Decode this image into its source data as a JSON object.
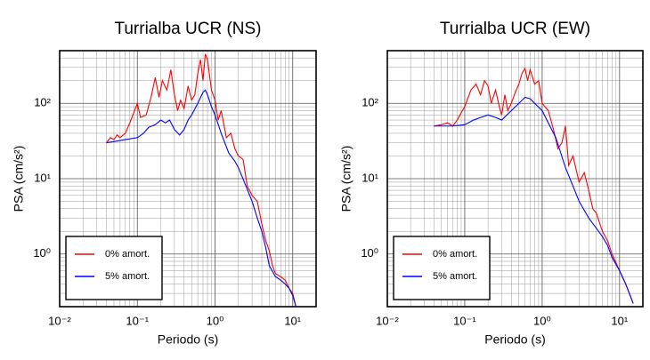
{
  "chart_data": [
    {
      "type": "line",
      "title": "Turrialba UCR (NS)",
      "x_label": "Periodo (s)",
      "y_label": "PSA (cm/s²)",
      "log_x": true,
      "log_y": true,
      "grid": true,
      "legend": "lower left",
      "xlim": [
        0.01,
        20
      ],
      "ylim": [
        0.2,
        500
      ],
      "xticks": [
        {
          "value": 0.01,
          "label": "10⁻²"
        },
        {
          "value": 0.1,
          "label": "10⁻¹"
        },
        {
          "value": 1,
          "label": "10⁰"
        },
        {
          "value": 10,
          "label": "10¹"
        }
      ],
      "yticks": [
        {
          "value": 1,
          "label": "10⁰"
        },
        {
          "value": 10,
          "label": "10¹"
        },
        {
          "value": 100,
          "label": "10²"
        }
      ],
      "xminorticks": [
        0.02,
        0.03,
        0.04,
        0.05,
        0.06,
        0.07,
        0.08,
        0.09,
        0.2,
        0.3,
        0.4,
        0.5,
        0.6,
        0.7,
        0.8,
        0.9,
        2,
        3,
        4,
        5,
        6,
        7,
        8,
        9,
        20
      ],
      "yminorticks": [
        0.2,
        0.3,
        0.4,
        0.5,
        0.6,
        0.7,
        0.8,
        0.9,
        2,
        3,
        4,
        5,
        6,
        7,
        8,
        9,
        20,
        30,
        40,
        50,
        60,
        70,
        80,
        90,
        200,
        300,
        400,
        500
      ],
      "series": [
        {
          "name": "0% amort.",
          "color": "#ff0000",
          "x": [
            0.04,
            0.045,
            0.05,
            0.055,
            0.06,
            0.07,
            0.08,
            0.09,
            0.1,
            0.11,
            0.13,
            0.15,
            0.17,
            0.19,
            0.21,
            0.24,
            0.27,
            0.3,
            0.33,
            0.36,
            0.4,
            0.45,
            0.5,
            0.55,
            0.6,
            0.65,
            0.7,
            0.75,
            0.8,
            0.9,
            1.0,
            1.1,
            1.2,
            1.4,
            1.6,
            1.8,
            2.0,
            2.3,
            2.6,
            3.0,
            3.5,
            4.0,
            4.5,
            5,
            5.5,
            6,
            7,
            8,
            9,
            10,
            11
          ],
          "values": [
            30,
            35,
            33,
            38,
            35,
            40,
            55,
            75,
            100,
            65,
            70,
            120,
            220,
            120,
            200,
            150,
            280,
            130,
            80,
            110,
            85,
            170,
            110,
            130,
            250,
            380,
            200,
            450,
            380,
            150,
            110,
            60,
            80,
            35,
            40,
            25,
            20,
            18,
            8,
            6,
            5,
            2.5,
            1.5,
            1.1,
            0.7,
            0.55,
            0.5,
            0.45,
            0.35,
            0.3,
            0.2
          ]
        },
        {
          "name": "5% amort.",
          "color": "#0000ff",
          "x": [
            0.04,
            0.05,
            0.07,
            0.1,
            0.12,
            0.14,
            0.17,
            0.2,
            0.23,
            0.26,
            0.3,
            0.35,
            0.4,
            0.45,
            0.5,
            0.6,
            0.7,
            0.75,
            0.8,
            0.9,
            1.0,
            1.2,
            1.5,
            1.8,
            2.0,
            2.5,
            3,
            3.5,
            4,
            4.5,
            5,
            6,
            7,
            8,
            9,
            10,
            11
          ],
          "values": [
            30,
            31,
            33,
            35,
            40,
            48,
            52,
            60,
            55,
            60,
            45,
            38,
            45,
            60,
            70,
            100,
            140,
            150,
            130,
            90,
            70,
            40,
            22,
            17,
            14,
            8,
            5,
            3,
            2,
            1.2,
            0.7,
            0.5,
            0.45,
            0.4,
            0.35,
            0.28,
            0.2
          ]
        }
      ]
    },
    {
      "type": "line",
      "title": "Turrialba UCR (EW)",
      "x_label": "Periodo (s)",
      "y_label": "PSA (cm/s²)",
      "log_x": true,
      "log_y": true,
      "grid": true,
      "legend": "lower left",
      "xlim": [
        0.01,
        20
      ],
      "ylim": [
        0.2,
        500
      ],
      "xticks": [
        {
          "value": 0.01,
          "label": "10⁻²"
        },
        {
          "value": 0.1,
          "label": "10⁻¹"
        },
        {
          "value": 1,
          "label": "10⁰"
        },
        {
          "value": 10,
          "label": "10¹"
        }
      ],
      "yticks": [
        {
          "value": 1,
          "label": "10⁰"
        },
        {
          "value": 10,
          "label": "10¹"
        },
        {
          "value": 100,
          "label": "10²"
        }
      ],
      "xminorticks": [
        0.02,
        0.03,
        0.04,
        0.05,
        0.06,
        0.07,
        0.08,
        0.09,
        0.2,
        0.3,
        0.4,
        0.5,
        0.6,
        0.7,
        0.8,
        0.9,
        2,
        3,
        4,
        5,
        6,
        7,
        8,
        9,
        20
      ],
      "yminorticks": [
        0.2,
        0.3,
        0.4,
        0.5,
        0.6,
        0.7,
        0.8,
        0.9,
        2,
        3,
        4,
        5,
        6,
        7,
        8,
        9,
        20,
        30,
        40,
        50,
        60,
        70,
        80,
        90,
        200,
        300,
        400,
        500
      ],
      "series": [
        {
          "name": "0% amort.",
          "color": "#ff0000",
          "x": [
            0.04,
            0.05,
            0.06,
            0.07,
            0.08,
            0.09,
            0.1,
            0.12,
            0.14,
            0.16,
            0.18,
            0.2,
            0.22,
            0.25,
            0.28,
            0.3,
            0.33,
            0.36,
            0.4,
            0.45,
            0.5,
            0.55,
            0.6,
            0.65,
            0.7,
            0.8,
            0.9,
            1.0,
            1.2,
            1.4,
            1.6,
            1.8,
            2.0,
            2.2,
            2.5,
            3,
            3.5,
            4,
            4.5,
            5,
            6,
            7,
            8,
            10,
            12,
            15
          ],
          "values": [
            50,
            52,
            55,
            50,
            60,
            75,
            90,
            150,
            180,
            130,
            200,
            170,
            100,
            150,
            90,
            70,
            130,
            80,
            100,
            140,
            180,
            250,
            290,
            200,
            280,
            180,
            200,
            100,
            80,
            45,
            25,
            30,
            50,
            15,
            20,
            9,
            12,
            7,
            4,
            3.5,
            2,
            1.5,
            1,
            0.6,
            0.4,
            0.22
          ]
        },
        {
          "name": "5% amort.",
          "color": "#0000ff",
          "x": [
            0.04,
            0.07,
            0.1,
            0.13,
            0.16,
            0.2,
            0.25,
            0.3,
            0.35,
            0.4,
            0.5,
            0.6,
            0.7,
            0.8,
            1.0,
            1.2,
            1.5,
            2.0,
            2.5,
            3,
            4,
            5,
            6,
            7,
            8,
            10,
            12,
            15
          ],
          "values": [
            50,
            50,
            52,
            60,
            65,
            70,
            65,
            60,
            70,
            80,
            100,
            120,
            115,
            100,
            80,
            55,
            35,
            14,
            8,
            5,
            3,
            2.2,
            1.7,
            1.3,
            0.9,
            0.6,
            0.4,
            0.22
          ]
        }
      ]
    }
  ]
}
